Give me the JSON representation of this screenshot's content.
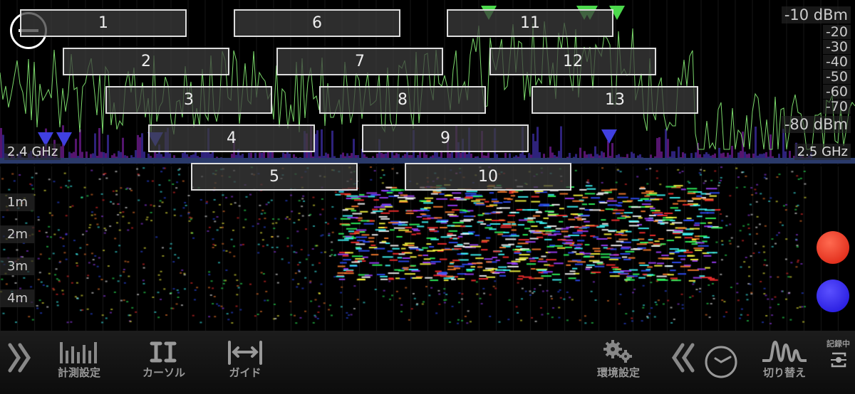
{
  "spectrum": {
    "y_top_label": "-10  dBm",
    "y_ticks": [
      "-20",
      "-30",
      "-40",
      "-50",
      "-60",
      "-70"
    ],
    "y_bottom_label": "-80  dBm",
    "freq_start": "2.4 GHz",
    "freq_end": "2.5 GHz",
    "trace_color": "#7ad86a"
  },
  "channels": [
    "1",
    "2",
    "3",
    "4",
    "5",
    "6",
    "7",
    "8",
    "9",
    "10",
    "11",
    "12",
    "13"
  ],
  "waterfall": {
    "time_labels": [
      "1m",
      "2m",
      "3m",
      "4m"
    ]
  },
  "markers": {
    "red_color": "#e8301c",
    "blue_color": "#2a1ee8"
  },
  "toolbar": {
    "measure_settings": "計測設定",
    "cursor": "カーソル",
    "guide": "ガイド",
    "env_settings": "環境設定",
    "switch": "切り替え",
    "recording": "記録中"
  }
}
